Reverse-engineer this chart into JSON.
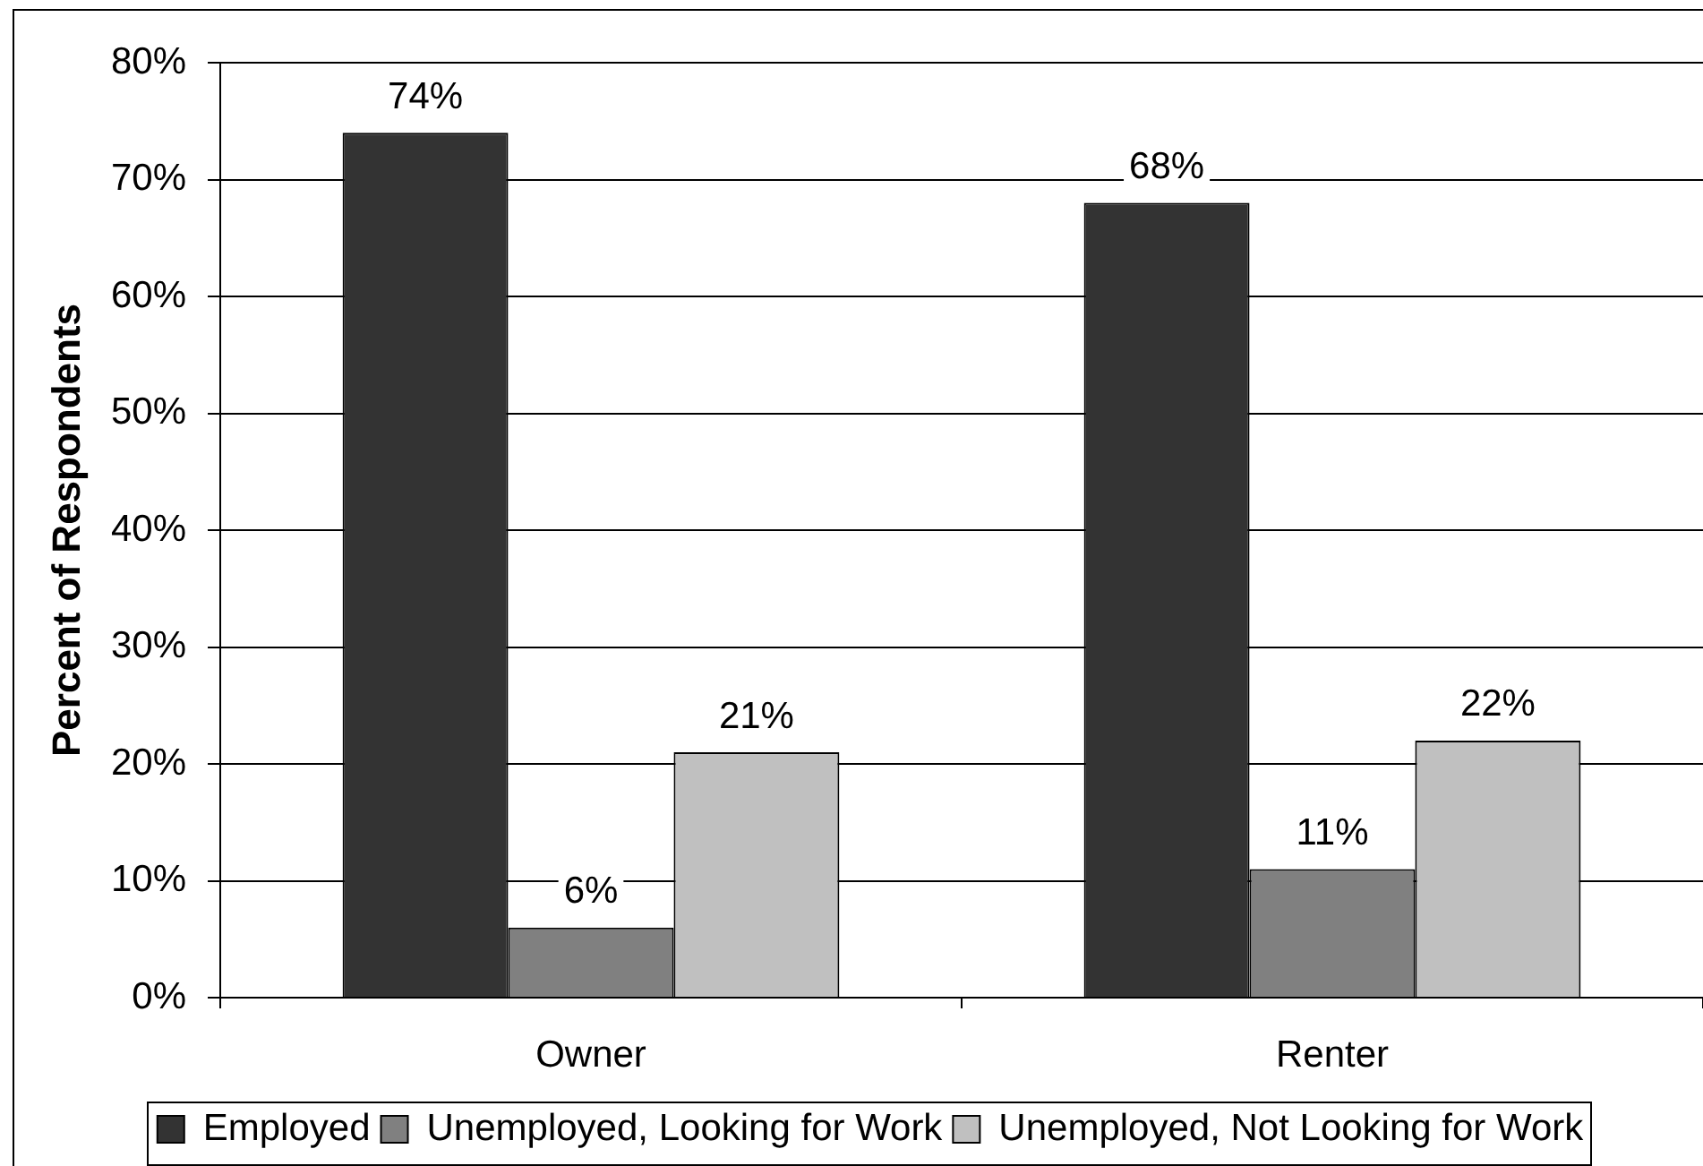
{
  "chart_data": {
    "type": "bar",
    "ylabel": "Percent of Respondents",
    "categories": [
      "Owner",
      "Renter"
    ],
    "series": [
      {
        "name": "Employed",
        "color": "#333333",
        "values": [
          74,
          68
        ],
        "value_labels": [
          "74%",
          "68%"
        ]
      },
      {
        "name": "Unemployed, Looking for Work",
        "color": "#808080",
        "values": [
          6,
          11
        ],
        "value_labels": [
          "6%",
          "11%"
        ]
      },
      {
        "name": "Unemployed, Not Looking for Work",
        "color": "#c0c0c0",
        "values": [
          21,
          22
        ],
        "value_labels": [
          "21%",
          "22%"
        ]
      }
    ],
    "ylim": [
      0,
      80
    ],
    "yticks": [
      {
        "value": 0,
        "label": "0%"
      },
      {
        "value": 10,
        "label": "10%"
      },
      {
        "value": 20,
        "label": "20%"
      },
      {
        "value": 30,
        "label": "30%"
      },
      {
        "value": 40,
        "label": "40%"
      },
      {
        "value": 50,
        "label": "50%"
      },
      {
        "value": 60,
        "label": "60%"
      },
      {
        "value": 70,
        "label": "70%"
      },
      {
        "value": 80,
        "label": "80%"
      }
    ],
    "grid": "y",
    "legend": "bottom"
  }
}
